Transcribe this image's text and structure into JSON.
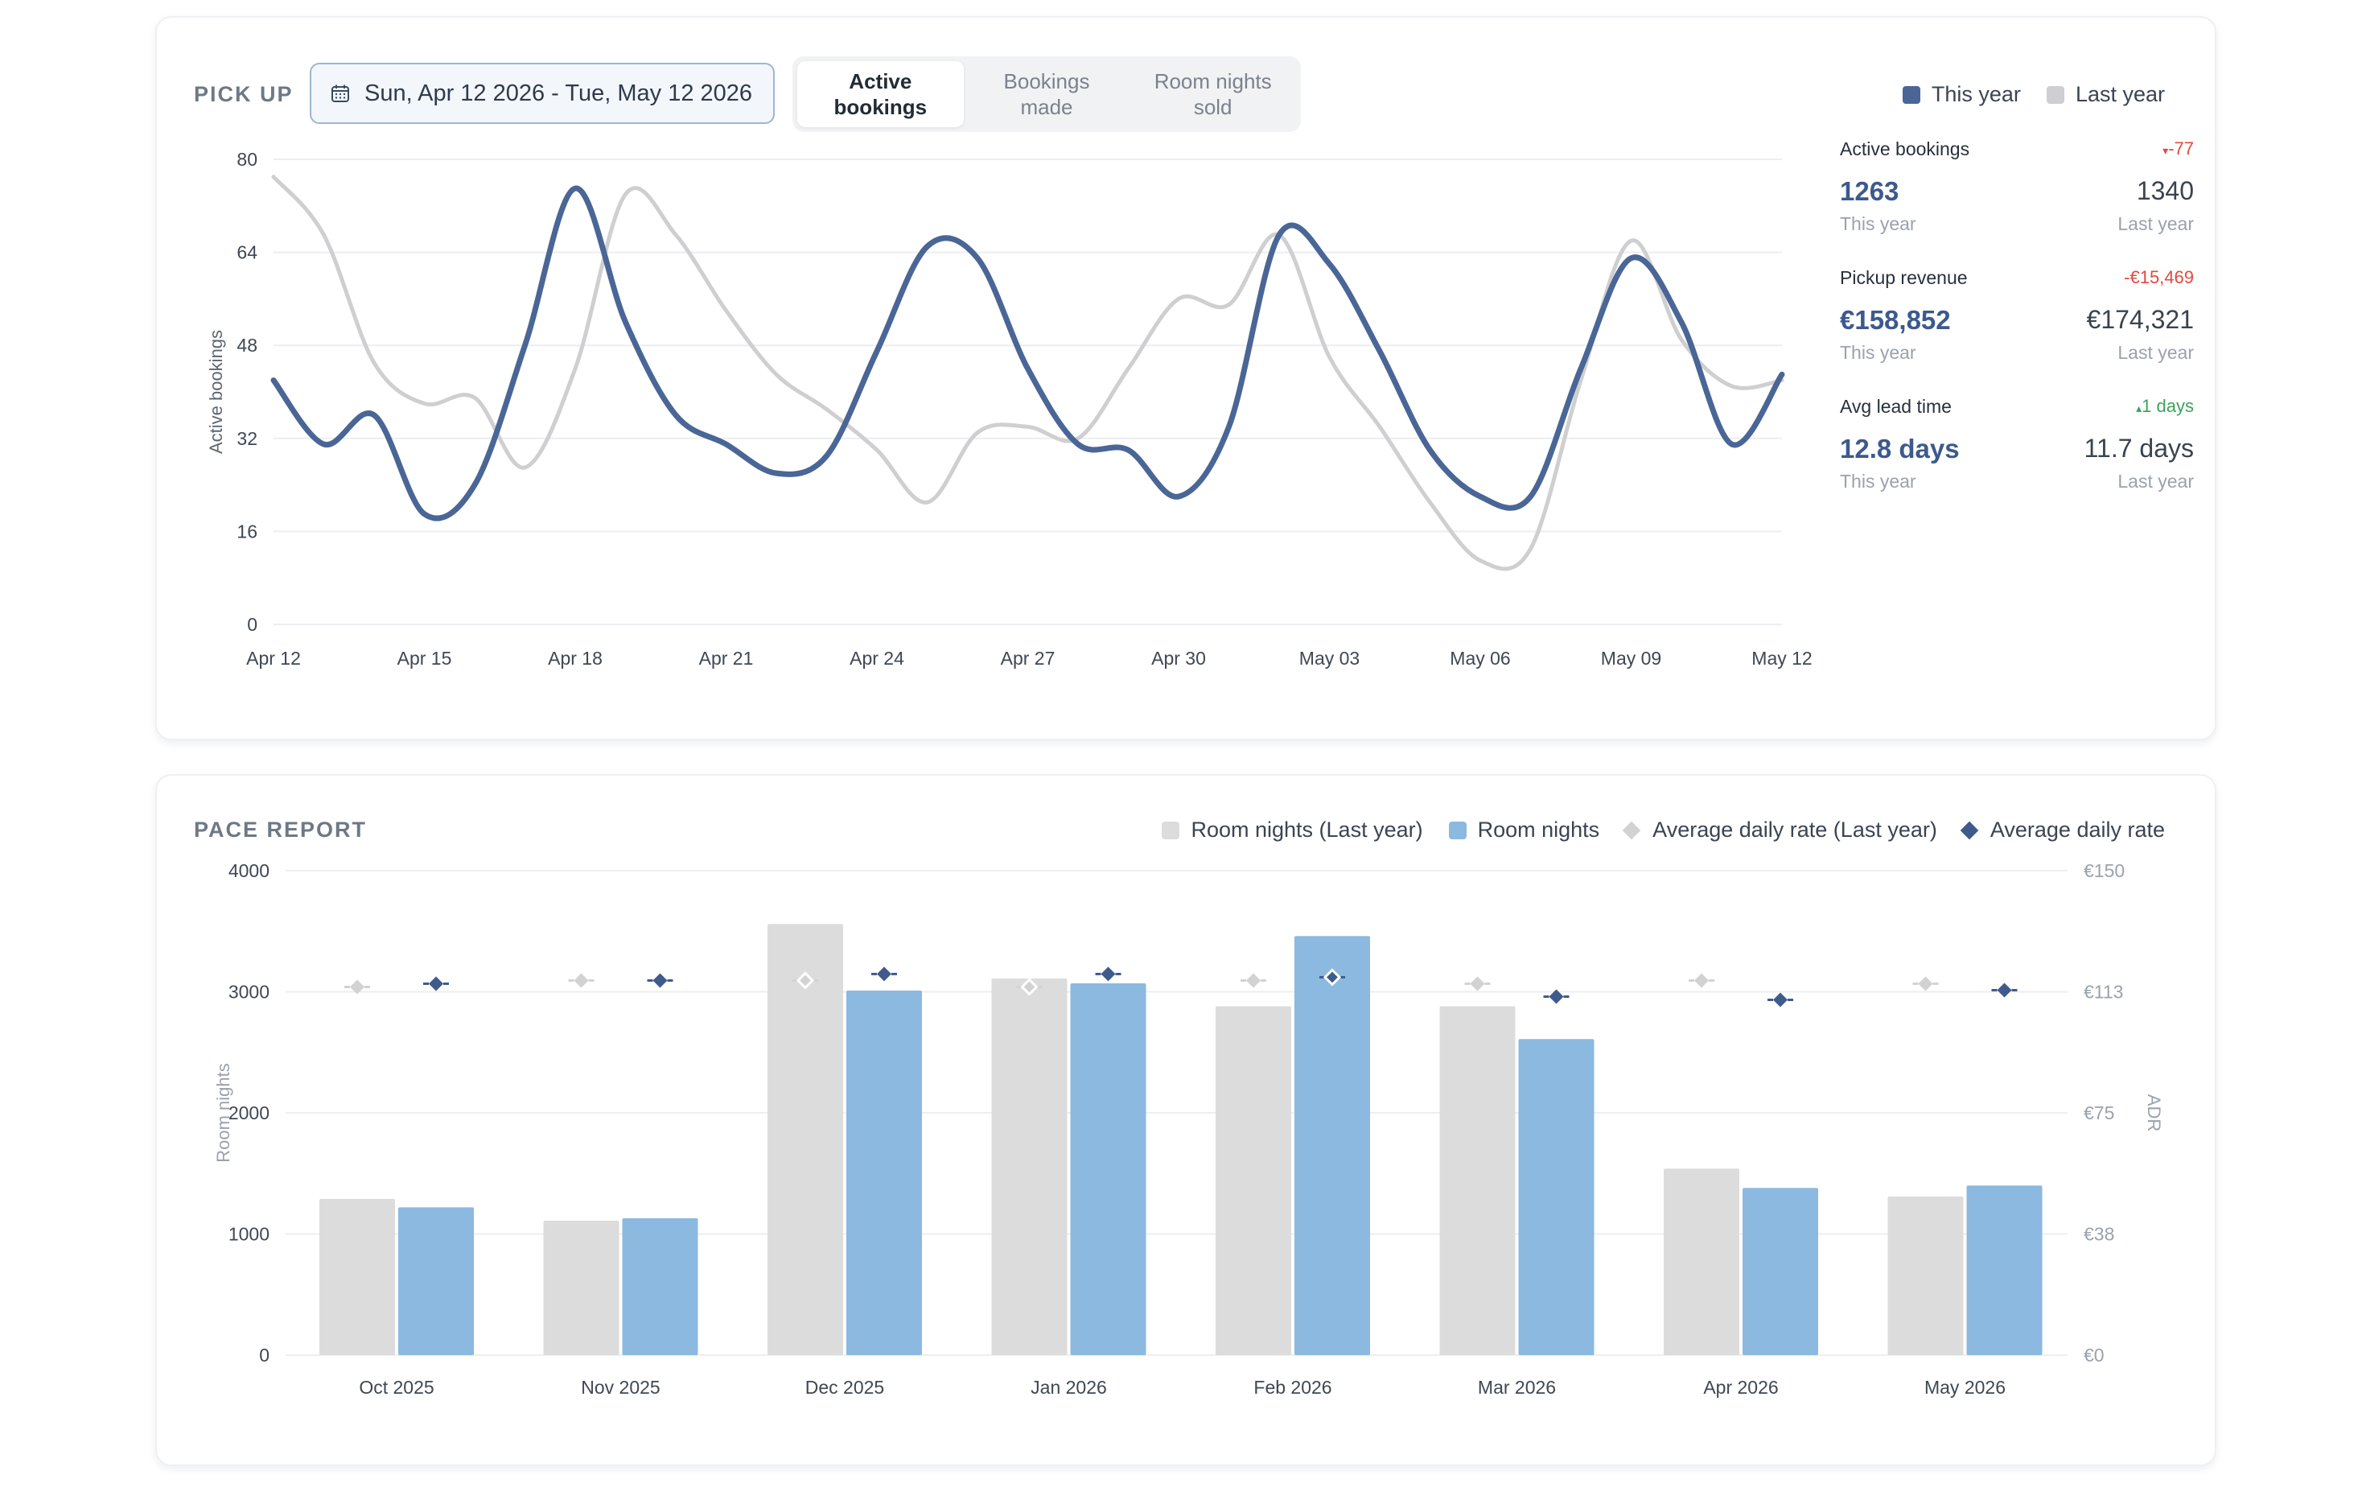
{
  "pickup": {
    "title": "PICK UP",
    "date_range": "Sun, Apr 12 2026 - Tue, May 12 2026",
    "tabs": [
      {
        "label": "Active\nbookings",
        "active": true
      },
      {
        "label": "Bookings\nmade",
        "active": false
      },
      {
        "label": "Room nights\nsold",
        "active": false
      }
    ],
    "legend": [
      {
        "label": "This year",
        "color": "#4a6696"
      },
      {
        "label": "Last year",
        "color": "#cfcfd1"
      }
    ],
    "stats": [
      {
        "label": "Active bookings",
        "delta": "-77",
        "delta_dir": "neg",
        "this_year": "1263",
        "last_year": "1340",
        "this_year_caption": "This year",
        "last_year_caption": "Last year"
      },
      {
        "label": "Pickup revenue",
        "delta": "-€15,469",
        "delta_dir": "neg",
        "this_year": "€158,852",
        "last_year": "€174,321",
        "this_year_caption": "This year",
        "last_year_caption": "Last year"
      },
      {
        "label": "Avg lead time",
        "delta": "1 days",
        "delta_dir": "pos",
        "this_year": "12.8 days",
        "last_year": "11.7 days",
        "this_year_caption": "This year",
        "last_year_caption": "Last year"
      }
    ]
  },
  "pace": {
    "title": "PACE REPORT",
    "legend": [
      {
        "label": "Room nights (Last year)",
        "color": "#dcdcdc",
        "shape": "square"
      },
      {
        "label": "Room nights",
        "color": "#8bb9e0",
        "shape": "square"
      },
      {
        "label": "Average daily rate (Last year)",
        "color": "#d2d2d2",
        "shape": "diamond"
      },
      {
        "label": "Average daily rate",
        "color": "#3f5b8c",
        "shape": "diamond"
      }
    ]
  },
  "chart_data": [
    {
      "type": "line",
      "ylabel": "Active bookings",
      "ylim": [
        0,
        80
      ],
      "yticks": [
        0,
        16,
        32,
        48,
        64,
        80
      ],
      "x_tick_labels": [
        "Apr 12",
        "Apr 15",
        "Apr 18",
        "Apr 21",
        "Apr 24",
        "Apr 27",
        "Apr 30",
        "May 03",
        "May 06",
        "May 09",
        "May 12"
      ],
      "x": [
        "Apr 12",
        "Apr 13",
        "Apr 14",
        "Apr 15",
        "Apr 16",
        "Apr 17",
        "Apr 18",
        "Apr 19",
        "Apr 20",
        "Apr 21",
        "Apr 22",
        "Apr 23",
        "Apr 24",
        "Apr 25",
        "Apr 26",
        "Apr 27",
        "Apr 28",
        "Apr 29",
        "Apr 30",
        "May 01",
        "May 02",
        "May 03",
        "May 04",
        "May 05",
        "May 06",
        "May 07",
        "May 08",
        "May 09",
        "May 10",
        "May 11",
        "May 12"
      ],
      "series": [
        {
          "name": "This year",
          "color": "#4a6696",
          "values": [
            42,
            31,
            36,
            19,
            24,
            48,
            75,
            52,
            36,
            31,
            26,
            29,
            47,
            65,
            63,
            44,
            31,
            30,
            22,
            34,
            67,
            62,
            47,
            30,
            22,
            22,
            44,
            63,
            52,
            31,
            43
          ]
        },
        {
          "name": "Last year",
          "color": "#cfcfd1",
          "values": [
            77,
            67,
            45,
            38,
            39,
            27,
            44,
            74,
            67,
            54,
            43,
            37,
            30,
            21,
            33,
            34,
            32,
            44,
            56,
            55,
            67,
            46,
            34,
            21,
            11,
            13,
            42,
            66,
            49,
            41,
            42
          ]
        }
      ],
      "grid": true
    },
    {
      "type": "bar",
      "categories": [
        "Oct 2025",
        "Nov 2025",
        "Dec 2025",
        "Jan 2026",
        "Feb 2026",
        "Mar 2026",
        "Apr 2026",
        "May 2026"
      ],
      "ylabel": "Room nights",
      "y2label": "ADR",
      "ylim": [
        0,
        4000
      ],
      "yticks": [
        0,
        1000,
        2000,
        3000,
        4000
      ],
      "y2lim": [
        0,
        150
      ],
      "y2_tick_labels": [
        "€0",
        "€38",
        "€75",
        "€113",
        "€150"
      ],
      "series": [
        {
          "name": "Room nights (Last year)",
          "axis": "left",
          "kind": "bar",
          "color": "#dcdcdc",
          "values": [
            1290,
            1110,
            3560,
            3110,
            2880,
            2880,
            1540,
            1310
          ]
        },
        {
          "name": "Room nights",
          "axis": "left",
          "kind": "bar",
          "color": "#8bb9e0",
          "values": [
            1220,
            1130,
            3010,
            3070,
            3460,
            2610,
            1380,
            1400
          ]
        },
        {
          "name": "Average daily rate (Last year)",
          "axis": "right",
          "kind": "marker",
          "color": "#d2d2d2",
          "values": [
            114,
            116,
            116,
            114,
            116,
            115,
            116,
            115
          ]
        },
        {
          "name": "Average daily rate",
          "axis": "right",
          "kind": "marker",
          "color": "#3f5b8c",
          "values": [
            115,
            116,
            118,
            118,
            117,
            111,
            110,
            113
          ]
        }
      ],
      "grid": true
    }
  ]
}
